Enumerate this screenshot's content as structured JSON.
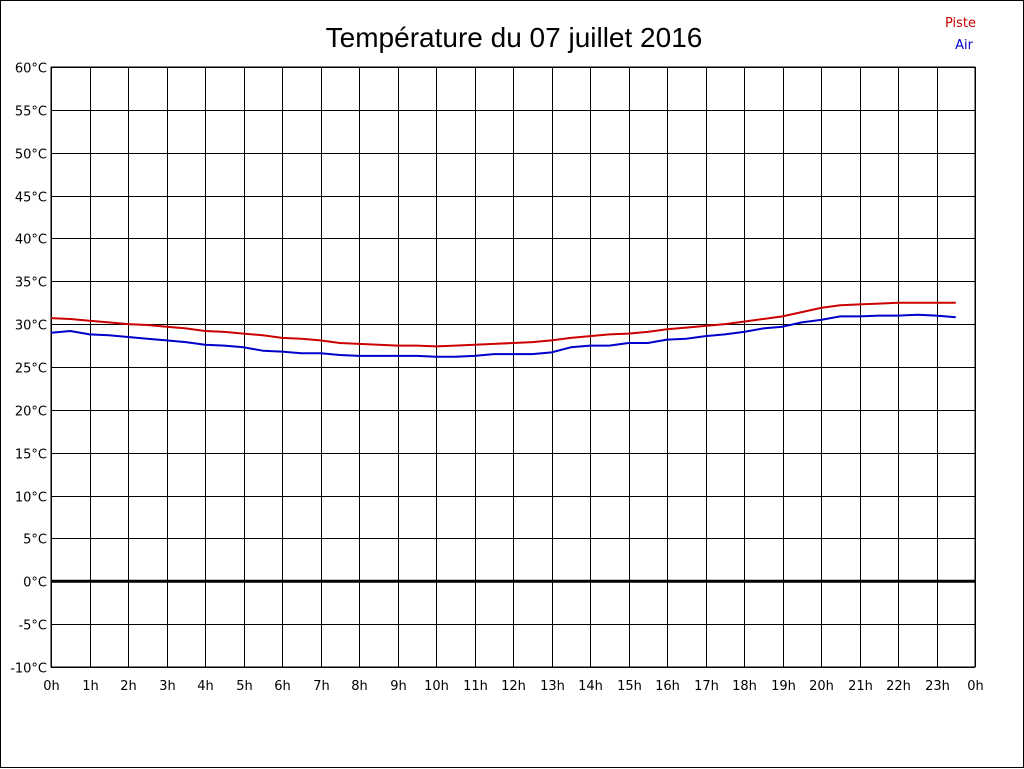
{
  "chart_data": {
    "type": "line",
    "title": "Température du 07 juillet 2016",
    "xlabel": "",
    "ylabel": "",
    "x_tick_labels": [
      "0h",
      "1h",
      "2h",
      "3h",
      "4h",
      "5h",
      "6h",
      "7h",
      "8h",
      "9h",
      "10h",
      "11h",
      "12h",
      "13h",
      "14h",
      "15h",
      "16h",
      "17h",
      "18h",
      "19h",
      "20h",
      "21h",
      "22h",
      "23h",
      "0h"
    ],
    "xlim": [
      0,
      24
    ],
    "y_ticks": [
      -10,
      -5,
      0,
      5,
      10,
      15,
      20,
      25,
      30,
      35,
      40,
      45,
      50,
      55,
      60
    ],
    "y_tick_suffix": "°C",
    "ylim": [
      -10,
      60
    ],
    "grid": true,
    "zero_line": true,
    "legend_position": "top-right",
    "series": [
      {
        "name": "Piste",
        "color": "#cc0000",
        "x": [
          0,
          0.5,
          1,
          1.5,
          2,
          2.5,
          3,
          3.5,
          4,
          4.5,
          5,
          5.5,
          6,
          6.5,
          7,
          7.5,
          8,
          8.5,
          9,
          9.5,
          10,
          10.5,
          11,
          11.5,
          12,
          12.5,
          13,
          13.5,
          14,
          14.5,
          15,
          15.5,
          16,
          16.5,
          17,
          17.5,
          18,
          18.5,
          19,
          19.5,
          20,
          20.5,
          21,
          21.5,
          22,
          22.5,
          23,
          23.5
        ],
        "y": [
          30.7,
          30.6,
          30.4,
          30.2,
          30.0,
          29.9,
          29.7,
          29.5,
          29.2,
          29.1,
          28.9,
          28.7,
          28.4,
          28.3,
          28.1,
          27.8,
          27.7,
          27.6,
          27.5,
          27.5,
          27.4,
          27.5,
          27.6,
          27.7,
          27.8,
          27.9,
          28.1,
          28.4,
          28.6,
          28.8,
          28.9,
          29.1,
          29.4,
          29.6,
          29.8,
          30.0,
          30.3,
          30.6,
          30.9,
          31.4,
          31.9,
          32.2,
          32.3,
          32.4,
          32.5,
          32.5,
          32.5,
          32.5
        ]
      },
      {
        "name": "Air",
        "color": "#0000cc",
        "x": [
          0,
          0.5,
          1,
          1.5,
          2,
          2.5,
          3,
          3.5,
          4,
          4.5,
          5,
          5.5,
          6,
          6.5,
          7,
          7.5,
          8,
          8.5,
          9,
          9.5,
          10,
          10.5,
          11,
          11.5,
          12,
          12.5,
          13,
          13.5,
          14,
          14.5,
          15,
          15.5,
          16,
          16.5,
          17,
          17.5,
          18,
          18.5,
          19,
          19.5,
          20,
          20.5,
          21,
          21.5,
          22,
          22.5,
          23,
          23.5
        ],
        "y": [
          29.0,
          29.2,
          28.8,
          28.7,
          28.5,
          28.3,
          28.1,
          27.9,
          27.6,
          27.5,
          27.3,
          26.9,
          26.8,
          26.6,
          26.6,
          26.4,
          26.3,
          26.3,
          26.3,
          26.3,
          26.2,
          26.2,
          26.3,
          26.5,
          26.5,
          26.5,
          26.7,
          27.3,
          27.5,
          27.5,
          27.8,
          27.8,
          28.2,
          28.3,
          28.6,
          28.8,
          29.1,
          29.5,
          29.7,
          30.2,
          30.5,
          30.9,
          30.9,
          31.0,
          31.0,
          31.1,
          31.0,
          30.8
        ]
      }
    ]
  }
}
